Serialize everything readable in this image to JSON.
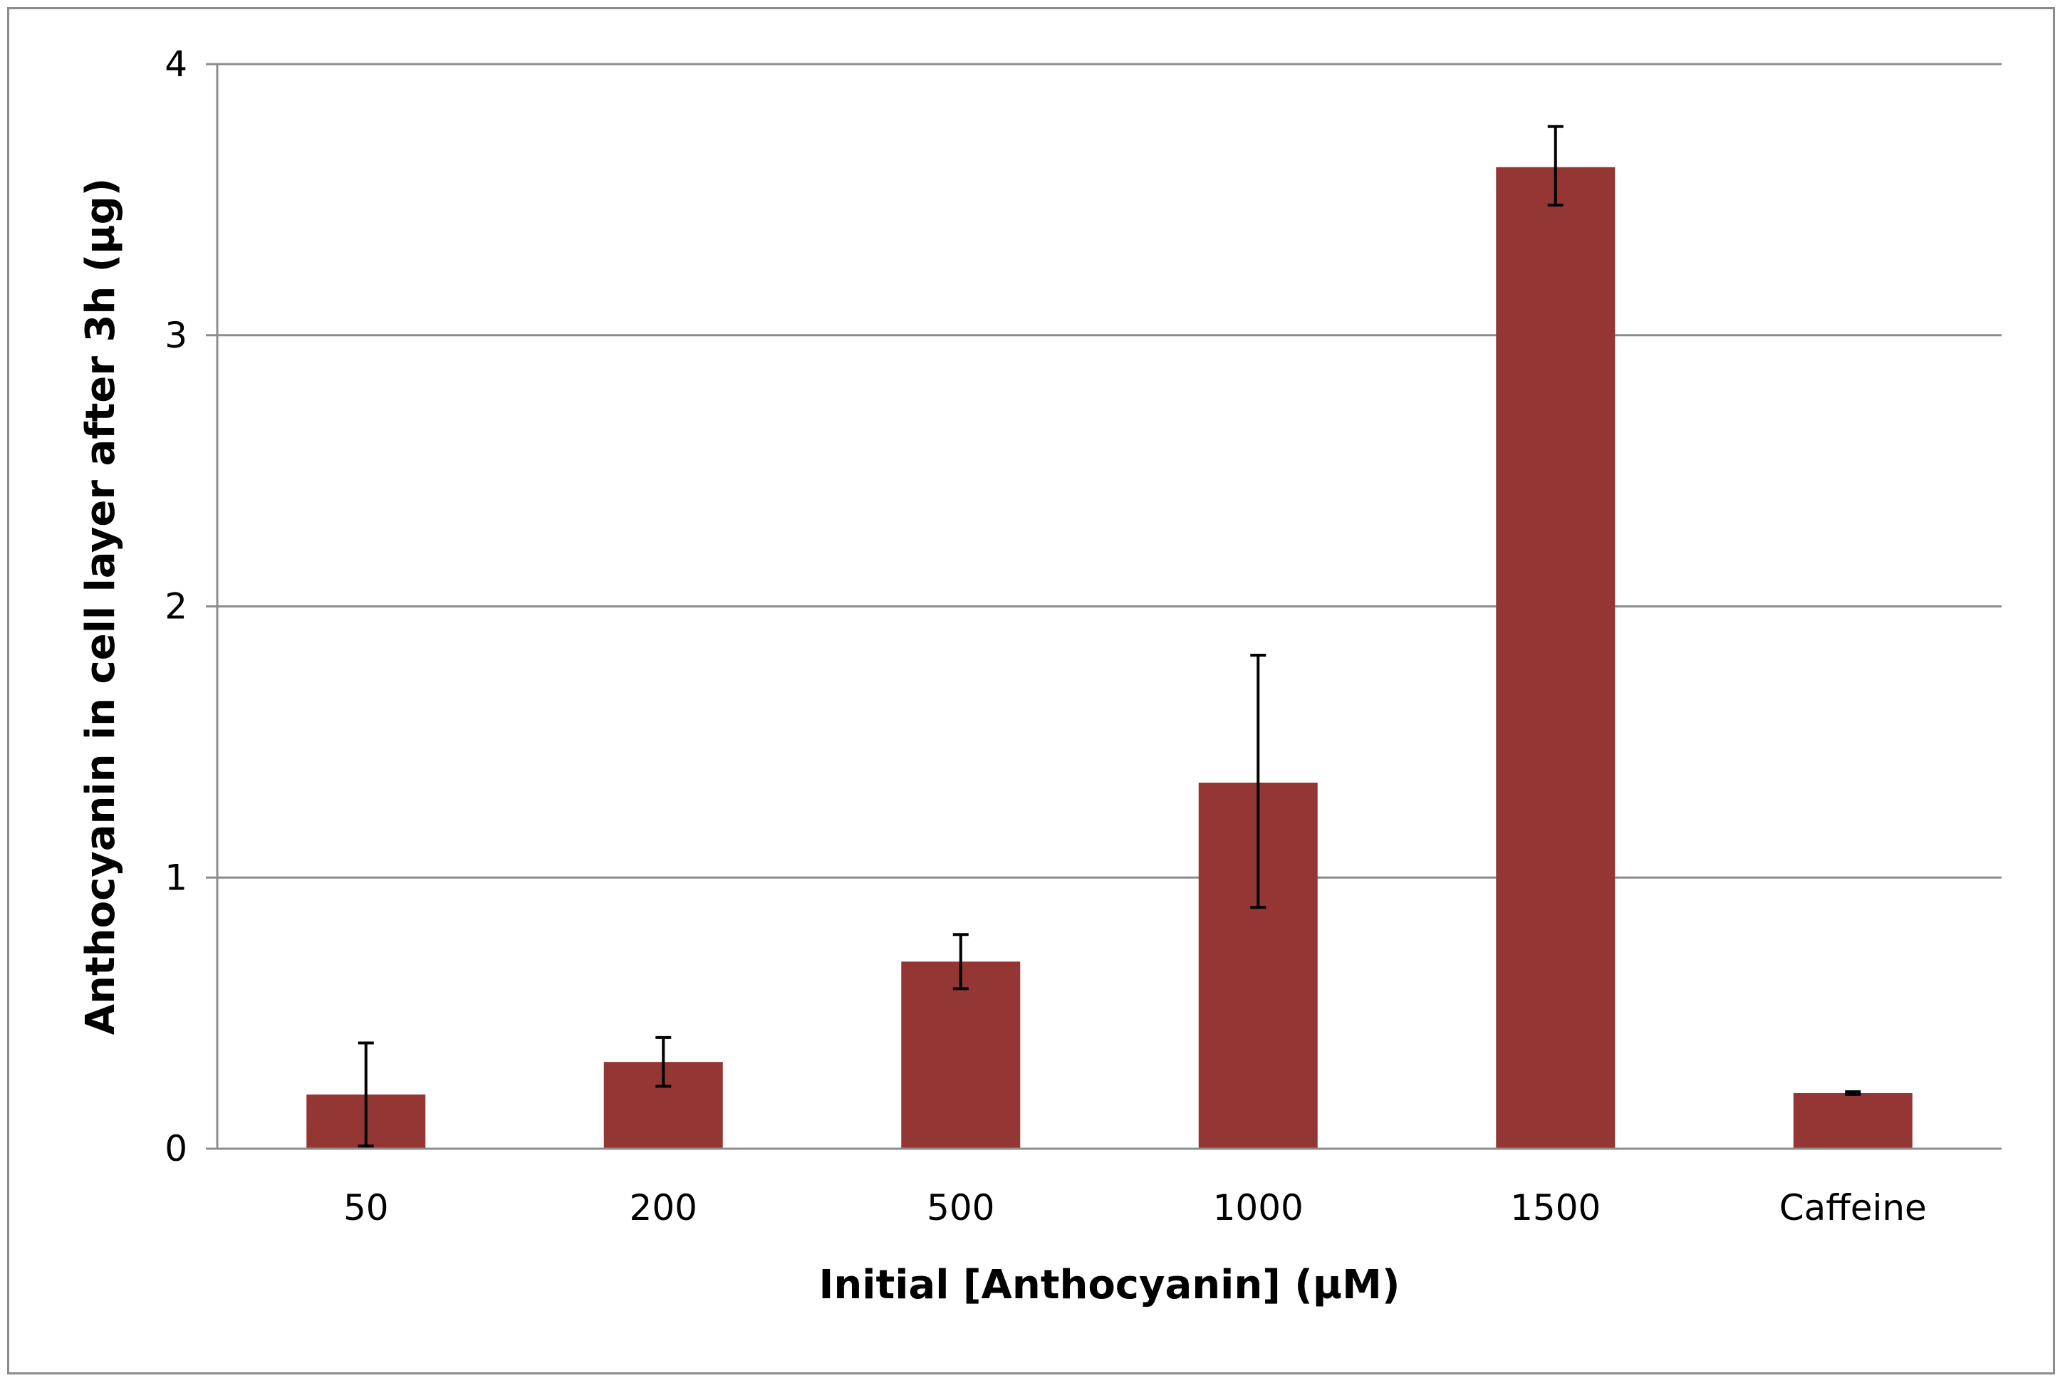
{
  "chart_data": {
    "type": "bar",
    "title": "",
    "xlabel": "Initial [Anthocyanin] (µM)",
    "ylabel": "Anthocyanin in cell layer after 3h (µg)",
    "categories": [
      "50",
      "200",
      "500",
      "1000",
      "1500",
      "Caffeine"
    ],
    "values": [
      0.2,
      0.32,
      0.69,
      1.35,
      3.62,
      0.205
    ],
    "error_low": [
      0.01,
      0.23,
      0.59,
      0.89,
      3.48,
      0.2
    ],
    "error_high": [
      0.39,
      0.41,
      0.79,
      1.82,
      3.77,
      0.21
    ],
    "ylim": [
      0,
      4
    ],
    "yticks": [
      "0",
      "1",
      "2",
      "3",
      "4"
    ],
    "grid": true,
    "legend": "none",
    "bar_color": "#943634",
    "gridline_color": "#8c8c8c",
    "error_bar_color": "#000000"
  }
}
